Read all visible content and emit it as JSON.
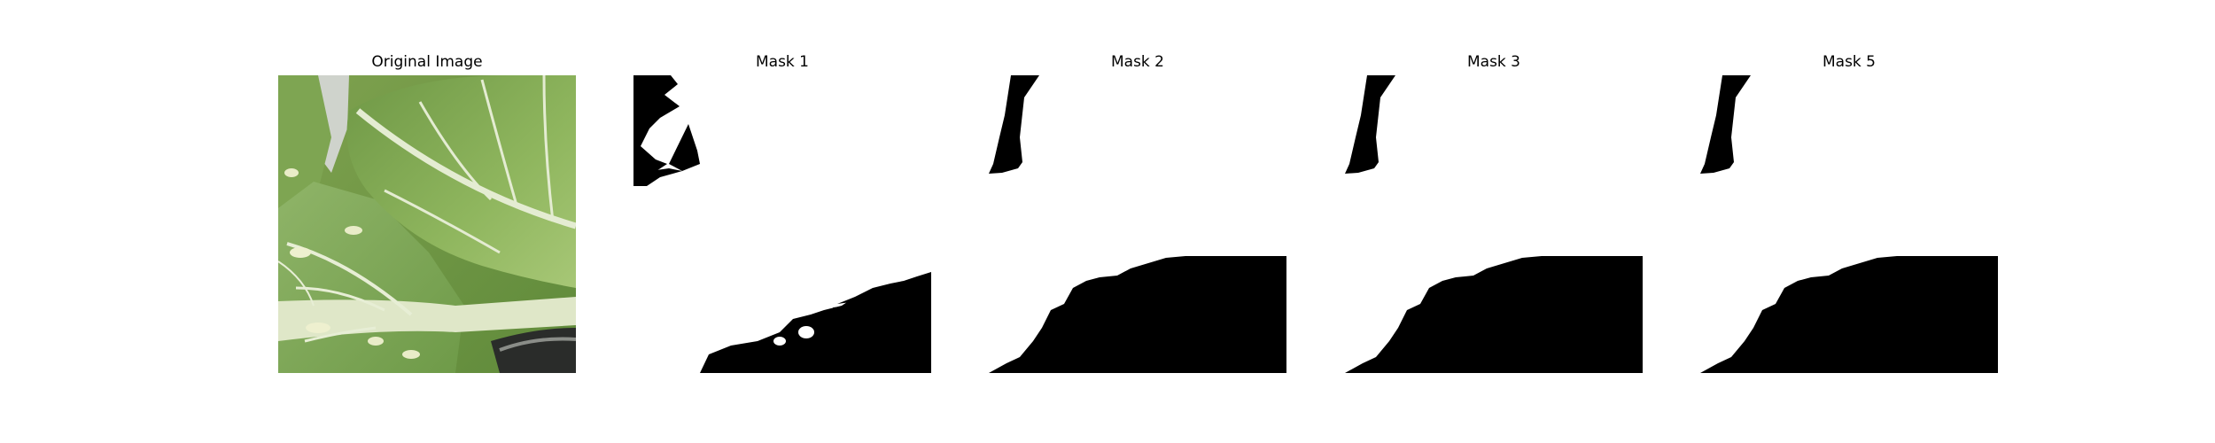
{
  "panels": [
    {
      "title": "Original Image",
      "kind": "photo",
      "subject": "leaf-photo"
    },
    {
      "title": "Mask 1",
      "kind": "mask",
      "variant": "noisy"
    },
    {
      "title": "Mask 2",
      "kind": "mask",
      "variant": "smooth"
    },
    {
      "title": "Mask 3",
      "kind": "mask",
      "variant": "smooth"
    },
    {
      "title": "Mask 5",
      "kind": "mask",
      "variant": "smooth"
    }
  ],
  "colors": {
    "mask_foreground": "#ffffff",
    "mask_background": "#000000",
    "leaf_dark": "#5e8a3c",
    "leaf_light": "#a9c77a",
    "vein": "#e4ecd2"
  }
}
